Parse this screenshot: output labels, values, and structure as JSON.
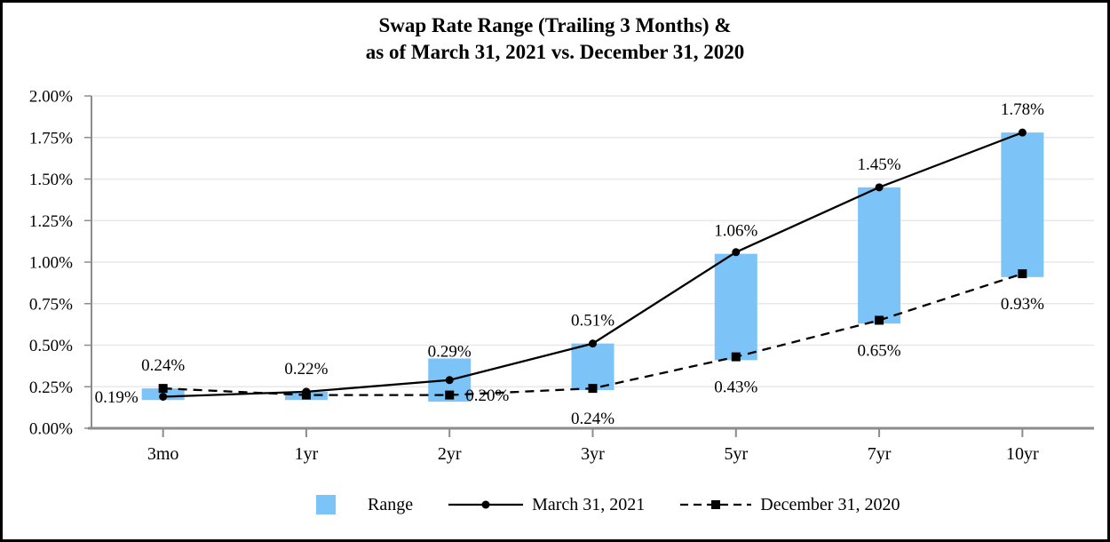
{
  "title": {
    "line1": "Swap Rate Range (Trailing 3 Months) &",
    "line2": "as of March 31, 2021 vs. December 31, 2020"
  },
  "colors": {
    "range_fill": "#7CC3F7",
    "gridline": "#E8E8E8",
    "axis": "#8C8C8C",
    "line": "#000000",
    "text": "#000000",
    "frame_border": "#000000"
  },
  "chart_data": {
    "type": "combo (floating range bars + two line series)",
    "title": "Swap Rate Range (Trailing 3 Months) & as of March 31, 2021 vs. December 31, 2020",
    "categories": [
      "3mo",
      "1yr",
      "2yr",
      "3yr",
      "5yr",
      "7yr",
      "10yr"
    ],
    "y_axis": {
      "min": 0,
      "max": 2,
      "step": 0.25,
      "tick_labels": [
        "0.00%",
        "0.25%",
        "0.50%",
        "0.75%",
        "1.00%",
        "1.25%",
        "1.50%",
        "1.75%",
        "2.00%"
      ],
      "grid": true
    },
    "range_bars": {
      "name": "Range",
      "low": [
        0.17,
        0.17,
        0.16,
        0.23,
        0.41,
        0.63,
        0.91
      ],
      "high": [
        0.24,
        0.22,
        0.42,
        0.51,
        1.05,
        1.45,
        1.78
      ]
    },
    "series": [
      {
        "name": "March 31, 2021",
        "line": "solid",
        "marker": "circle",
        "values": [
          0.19,
          0.22,
          0.29,
          0.51,
          1.06,
          1.45,
          1.78
        ],
        "labels": [
          {
            "text": "0.19%",
            "pos": "left"
          },
          {
            "text": "0.22%",
            "pos": "above"
          },
          {
            "text": "0.29%",
            "pos": "above",
            "dy": 18
          },
          {
            "text": "0.51%",
            "pos": "above"
          },
          {
            "text": "1.06%",
            "pos": "above"
          },
          {
            "text": "1.45%",
            "pos": "above"
          },
          {
            "text": "1.78%",
            "pos": "above"
          }
        ]
      },
      {
        "name": "December 31, 2020",
        "line": "dashed",
        "marker": "square",
        "values": [
          0.24,
          0.2,
          0.2,
          0.24,
          0.43,
          0.65,
          0.93
        ],
        "labels": [
          {
            "text": "0.24%",
            "pos": "above"
          },
          null,
          {
            "text": "0.20%",
            "pos": "right"
          },
          {
            "text": "0.24%",
            "pos": "below"
          },
          {
            "text": "0.43%",
            "pos": "below"
          },
          {
            "text": "0.65%",
            "pos": "below"
          },
          {
            "text": "0.93%",
            "pos": "below"
          }
        ]
      }
    ],
    "legend_position": "bottom"
  },
  "legend": {
    "entries": [
      {
        "label": "Range",
        "swatch": "blue-square"
      },
      {
        "label": "March 31, 2021",
        "swatch": "solid-line-circle-marker"
      },
      {
        "label": "December 31, 2020",
        "swatch": "dashed-line-square-marker"
      }
    ]
  }
}
